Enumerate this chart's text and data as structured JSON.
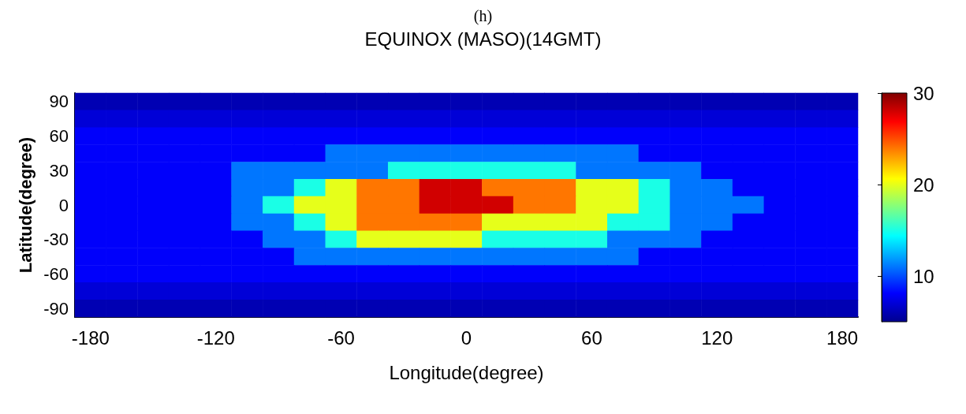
{
  "chart_data": {
    "type": "heatmap",
    "title": "EQUINOX (MASO)(14GMT)",
    "annotations": [
      "(h)"
    ],
    "xlabel": "Longitude(degree)",
    "ylabel": "Latitude(degree)",
    "categories": [
      "-180",
      null,
      null,
      null,
      "-120",
      null,
      null,
      null,
      "-60",
      null,
      null,
      null,
      "0",
      null,
      null,
      null,
      "60",
      null,
      null,
      null,
      "120",
      null,
      null,
      null,
      "180"
    ],
    "y_categories": [
      "90",
      null,
      "60",
      null,
      "30",
      null,
      "0",
      null,
      "-30",
      null,
      "-60",
      null,
      "-90"
    ],
    "cells": [
      [
        6,
        6,
        6,
        6,
        6,
        6,
        6,
        6,
        6,
        6,
        6,
        6,
        6,
        6,
        6,
        6,
        6,
        6,
        6,
        6,
        6,
        6,
        6,
        6,
        6
      ],
      [
        7,
        7,
        7,
        7,
        7,
        7,
        7,
        7,
        7,
        7,
        7,
        7,
        7,
        7,
        7,
        7,
        7,
        7,
        7,
        7,
        7,
        7,
        7,
        7,
        7
      ],
      [
        8,
        8,
        8,
        8,
        8,
        8,
        8,
        8,
        8,
        8,
        8,
        8,
        8,
        8,
        8,
        8,
        8,
        8,
        8,
        8,
        8,
        8,
        8,
        8,
        8
      ],
      [
        8,
        8,
        8,
        8,
        8,
        8,
        8,
        8,
        11,
        11,
        11,
        11,
        11,
        11,
        11,
        11,
        11,
        11,
        8,
        8,
        8,
        8,
        8,
        8,
        8
      ],
      [
        8,
        8,
        8,
        8,
        8,
        11,
        11,
        11,
        11,
        11,
        15,
        15,
        15,
        15,
        15,
        15,
        11,
        11,
        11,
        11,
        8,
        8,
        8,
        8,
        8
      ],
      [
        8,
        8,
        8,
        8,
        8,
        11,
        11,
        15,
        20,
        24,
        24,
        28,
        28,
        24,
        24,
        24,
        20,
        20,
        15,
        11,
        11,
        8,
        8,
        8,
        8
      ],
      [
        8,
        8,
        8,
        8,
        8,
        11,
        15,
        20,
        20,
        24,
        24,
        28,
        28,
        28,
        24,
        24,
        20,
        20,
        15,
        11,
        11,
        11,
        8,
        8,
        8
      ],
      [
        8,
        8,
        8,
        8,
        8,
        11,
        11,
        15,
        20,
        24,
        24,
        24,
        24,
        20,
        20,
        20,
        20,
        15,
        15,
        11,
        11,
        8,
        8,
        8,
        8
      ],
      [
        8,
        8,
        8,
        8,
        8,
        8,
        11,
        11,
        15,
        20,
        20,
        20,
        20,
        15,
        15,
        15,
        15,
        11,
        11,
        11,
        8,
        8,
        8,
        8,
        8
      ],
      [
        8,
        8,
        8,
        8,
        8,
        8,
        8,
        11,
        11,
        11,
        11,
        11,
        11,
        11,
        11,
        11,
        11,
        11,
        8,
        8,
        8,
        8,
        8,
        8,
        8
      ],
      [
        8,
        8,
        8,
        8,
        8,
        8,
        8,
        8,
        8,
        8,
        8,
        8,
        8,
        8,
        8,
        8,
        8,
        8,
        8,
        8,
        8,
        8,
        8,
        8,
        8
      ],
      [
        7,
        7,
        7,
        7,
        7,
        7,
        7,
        7,
        7,
        7,
        7,
        7,
        7,
        7,
        7,
        7,
        7,
        7,
        7,
        7,
        7,
        7,
        7,
        7,
        7
      ],
      [
        6,
        6,
        6,
        6,
        6,
        6,
        6,
        6,
        6,
        6,
        6,
        6,
        6,
        6,
        6,
        6,
        6,
        6,
        6,
        6,
        6,
        6,
        6,
        6,
        6
      ]
    ],
    "clim": [
      5,
      30
    ],
    "cticks": [
      10,
      20,
      30
    ]
  }
}
